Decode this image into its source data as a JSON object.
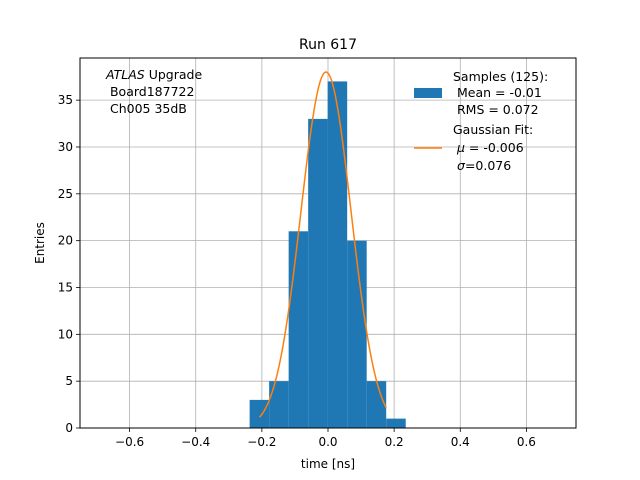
{
  "chart_data": {
    "type": "bar",
    "title": "Run 617",
    "xlabel": "time [ns]",
    "ylabel": "Entries",
    "xlim": [
      -0.75,
      0.75
    ],
    "ylim": [
      0,
      39.5
    ],
    "xticks": [
      -0.6,
      -0.4,
      -0.2,
      0.0,
      0.2,
      0.4,
      0.6
    ],
    "xtick_labels": [
      "−0.6",
      "−0.4",
      "−0.2",
      "0.0",
      "0.2",
      "0.4",
      "0.6"
    ],
    "yticks": [
      0,
      5,
      10,
      15,
      20,
      25,
      30,
      35
    ],
    "yticks_labels": [
      "0",
      "5",
      "10",
      "15",
      "20",
      "25",
      "30",
      "35"
    ],
    "grid": true,
    "legend_position": "top-right",
    "histogram": {
      "name": "Samples (125):",
      "color": "#1f77b4",
      "bin_edges": [
        -0.237,
        -0.178,
        -0.119,
        -0.06,
        -0.001,
        0.058,
        0.117,
        0.176,
        0.235
      ],
      "bins": [
        {
          "x0": -0.237,
          "x1": -0.178,
          "count": 3
        },
        {
          "x0": -0.178,
          "x1": -0.119,
          "count": 5
        },
        {
          "x0": -0.119,
          "x1": -0.06,
          "count": 21
        },
        {
          "x0": -0.06,
          "x1": -0.001,
          "count": 33
        },
        {
          "x0": -0.001,
          "x1": 0.058,
          "count": 37
        },
        {
          "x0": 0.058,
          "x1": 0.117,
          "count": 20
        },
        {
          "x0": 0.117,
          "x1": 0.176,
          "count": 5
        },
        {
          "x0": 0.176,
          "x1": 0.235,
          "count": 1
        }
      ]
    },
    "fit": {
      "name": "Gaussian Fit:",
      "color": "#ff7f0e",
      "mu": -0.006,
      "sigma": 0.076,
      "amplitude": 38.0,
      "x_range": [
        -0.207,
        0.176
      ]
    },
    "annotation": {
      "line1_italic": "ATLAS",
      "line1_rest": " Upgrade",
      "line2": " Board187722",
      "line3": " Ch005 35dB"
    },
    "legend": {
      "hist_line1": "Samples (125):",
      "hist_line2": " Mean = -0.01",
      "hist_line3": " RMS = 0.072",
      "fit_line1": "Gaussian Fit:",
      "fit_mu_symbol": "μ",
      "fit_mu_rest": " = -0.006",
      "fit_sigma_symbol": "σ",
      "fit_sigma_rest": "=0.076"
    }
  }
}
